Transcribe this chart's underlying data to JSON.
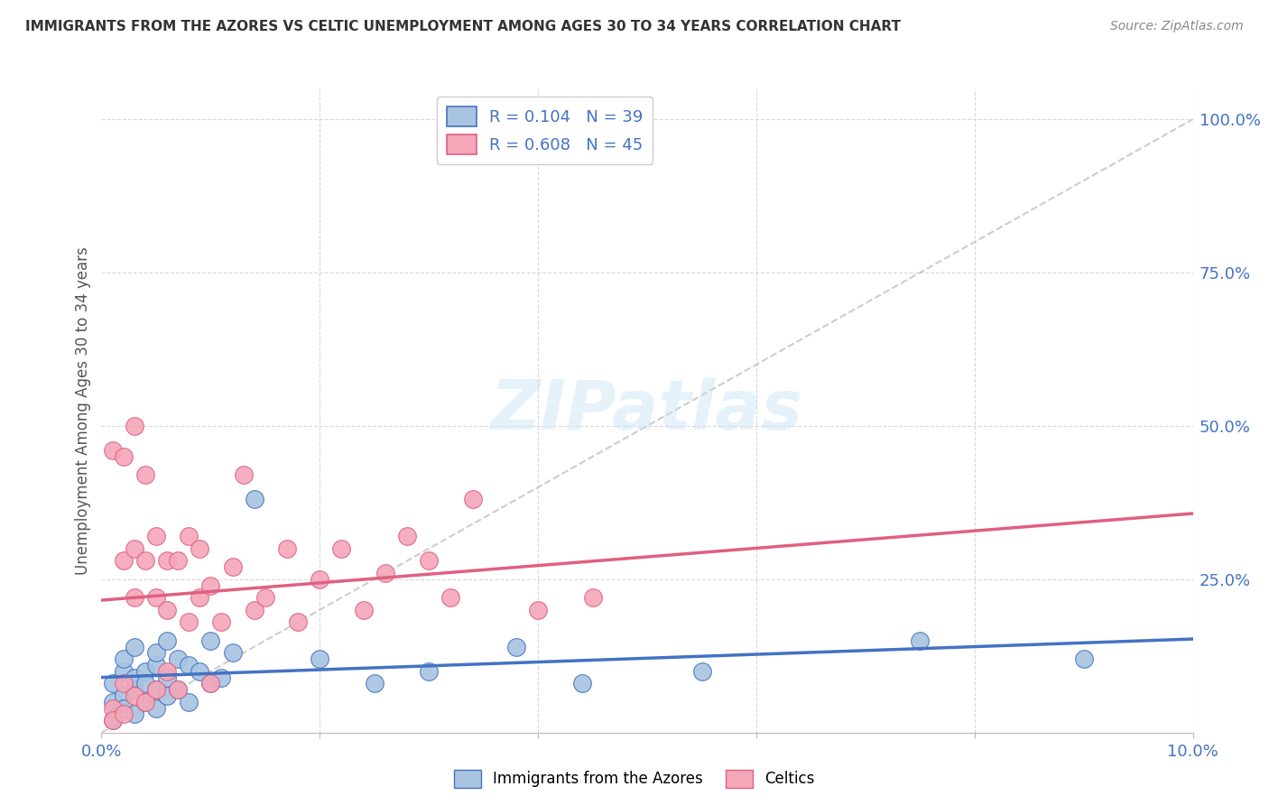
{
  "title": "IMMIGRANTS FROM THE AZORES VS CELTIC UNEMPLOYMENT AMONG AGES 30 TO 34 YEARS CORRELATION CHART",
  "source": "Source: ZipAtlas.com",
  "ylabel": "Unemployment Among Ages 30 to 34 years",
  "xlim": [
    0.0,
    0.1
  ],
  "ylim": [
    0.0,
    1.05
  ],
  "x_ticks": [
    0.0,
    0.02,
    0.04,
    0.06,
    0.08,
    0.1
  ],
  "x_tick_labels": [
    "0.0%",
    "",
    "",
    "",
    "",
    "10.0%"
  ],
  "y_ticks_right": [
    0.0,
    0.25,
    0.5,
    0.75,
    1.0
  ],
  "y_tick_labels_right": [
    "",
    "25.0%",
    "50.0%",
    "75.0%",
    "100.0%"
  ],
  "legend_r1": "R = 0.104",
  "legend_n1": "N = 39",
  "legend_r2": "R = 0.608",
  "legend_n2": "N = 45",
  "color_blue": "#a8c4e0",
  "color_pink": "#f4a7b9",
  "color_blue_line": "#4472c4",
  "color_pink_line": "#e06080",
  "color_diag": "#c8c8c8",
  "watermark": "ZIPatlas",
  "azores_x": [
    0.001,
    0.001,
    0.001,
    0.002,
    0.002,
    0.002,
    0.002,
    0.003,
    0.003,
    0.003,
    0.003,
    0.004,
    0.004,
    0.004,
    0.005,
    0.005,
    0.005,
    0.005,
    0.006,
    0.006,
    0.006,
    0.007,
    0.007,
    0.008,
    0.008,
    0.009,
    0.01,
    0.01,
    0.011,
    0.012,
    0.014,
    0.02,
    0.025,
    0.03,
    0.038,
    0.044,
    0.055,
    0.075,
    0.09
  ],
  "azores_y": [
    0.05,
    0.08,
    0.02,
    0.06,
    0.1,
    0.04,
    0.12,
    0.03,
    0.07,
    0.09,
    0.14,
    0.05,
    0.1,
    0.08,
    0.04,
    0.07,
    0.11,
    0.13,
    0.06,
    0.09,
    0.15,
    0.07,
    0.12,
    0.05,
    0.11,
    0.1,
    0.08,
    0.15,
    0.09,
    0.13,
    0.38,
    0.12,
    0.08,
    0.1,
    0.14,
    0.08,
    0.1,
    0.15,
    0.12
  ],
  "celtics_x": [
    0.001,
    0.001,
    0.001,
    0.002,
    0.002,
    0.002,
    0.002,
    0.003,
    0.003,
    0.003,
    0.003,
    0.004,
    0.004,
    0.004,
    0.005,
    0.005,
    0.005,
    0.006,
    0.006,
    0.006,
    0.007,
    0.007,
    0.008,
    0.008,
    0.009,
    0.009,
    0.01,
    0.01,
    0.011,
    0.012,
    0.013,
    0.014,
    0.015,
    0.017,
    0.018,
    0.02,
    0.022,
    0.024,
    0.026,
    0.028,
    0.03,
    0.032,
    0.034,
    0.04,
    0.045
  ],
  "celtics_y": [
    0.04,
    0.46,
    0.02,
    0.08,
    0.28,
    0.45,
    0.03,
    0.3,
    0.06,
    0.22,
    0.5,
    0.05,
    0.28,
    0.42,
    0.07,
    0.22,
    0.32,
    0.1,
    0.28,
    0.2,
    0.07,
    0.28,
    0.18,
    0.32,
    0.22,
    0.3,
    0.08,
    0.24,
    0.18,
    0.27,
    0.42,
    0.2,
    0.22,
    0.3,
    0.18,
    0.25,
    0.3,
    0.2,
    0.26,
    0.32,
    0.28,
    0.22,
    0.38,
    0.2,
    0.22
  ]
}
